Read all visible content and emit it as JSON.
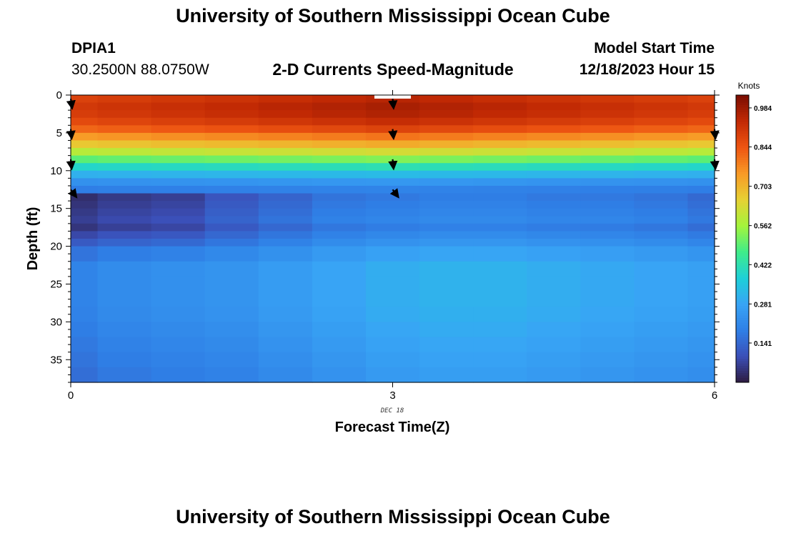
{
  "header": {
    "title": "University of Southern Mississippi Ocean Cube",
    "station_id": "DPIA1",
    "location": "30.2500N  88.0750W",
    "chart_title": "2-D Currents Speed-Magnitude",
    "model_start_label": "Model Start Time",
    "model_start_value": "12/18/2023 Hour 15"
  },
  "footer": {
    "title": "University of Southern Mississippi Ocean Cube"
  },
  "colors": {
    "colormap": [
      "#2d1b3f",
      "#3b4fb8",
      "#2f7fe6",
      "#38a4f5",
      "#1ed0d8",
      "#3fec8a",
      "#a4f43c",
      "#e6d134",
      "#f89a26",
      "#ee5512",
      "#c22a04",
      "#7a0d02"
    ],
    "arrow": "#000000",
    "surface_marker": "#ffffff"
  },
  "chart_data": {
    "type": "heatmap",
    "title": "2-D Currents Speed-Magnitude",
    "xlabel": "Forecast Time(Z)",
    "ylabel": "Depth (ft)",
    "x_date_label": "DEC 18",
    "xlim": [
      0,
      6
    ],
    "ylim": [
      38,
      0
    ],
    "x_ticks": [
      0,
      3,
      6
    ],
    "y_ticks": [
      0,
      5,
      10,
      15,
      20,
      25,
      30,
      35
    ],
    "y_inverted": true,
    "colorbar": {
      "title": "Knots",
      "range": [
        0.0,
        1.03
      ],
      "tick_values": [
        0.984,
        0.844,
        0.703,
        0.562,
        0.422,
        0.281,
        0.141
      ],
      "tick_labels": [
        "0.984",
        "0.844",
        "0.703",
        "0.562",
        "0.422",
        "0.281",
        "0.141"
      ]
    },
    "time_points": [
      0,
      0.25,
      0.75,
      1.25,
      1.75,
      2.25,
      2.75,
      3.25,
      3.75,
      4.25,
      4.75,
      5.25,
      5.75,
      6
    ],
    "depth_points": [
      0,
      1,
      2,
      3,
      4,
      5,
      6,
      7,
      8,
      9,
      10,
      11,
      12,
      13,
      14,
      15,
      16,
      17,
      18,
      19,
      20,
      22,
      24,
      26,
      28,
      30,
      32,
      34,
      36,
      38
    ],
    "speed_surface_ramp": [
      0.95,
      0.97,
      0.96,
      0.93,
      0.88,
      0.8,
      0.72,
      0.63,
      0.53,
      0.42,
      0.33,
      0.25,
      0.2,
      0.18
    ],
    "speed_low_layer": [
      0.03,
      0.05,
      0.06,
      0.1,
      0.13,
      0.16,
      0.17,
      0.18,
      0.18,
      0.17,
      0.17,
      0.16,
      0.14,
      0.13
    ],
    "speed_deep": [
      0.2,
      0.22,
      0.23,
      0.24,
      0.26,
      0.28,
      0.3,
      0.31,
      0.31,
      0.3,
      0.29,
      0.28,
      0.27,
      0.27
    ],
    "arrows": [
      {
        "time": 0,
        "depth": 0.5,
        "u": 0.15,
        "v": -1
      },
      {
        "time": 0,
        "depth": 4.5,
        "u": 0.1,
        "v": -1
      },
      {
        "time": 0,
        "depth": 8.5,
        "u": 0.1,
        "v": -1
      },
      {
        "time": 0,
        "depth": 12.5,
        "u": 0.6,
        "v": -0.8
      },
      {
        "time": 3,
        "depth": 0.5,
        "u": 0.1,
        "v": -1
      },
      {
        "time": 3,
        "depth": 4.5,
        "u": 0.1,
        "v": -1
      },
      {
        "time": 3,
        "depth": 8.5,
        "u": 0.1,
        "v": -1
      },
      {
        "time": 3,
        "depth": 12.5,
        "u": 0.6,
        "v": -0.8
      },
      {
        "time": 6,
        "depth": 4.5,
        "u": 0.1,
        "v": -1
      },
      {
        "time": 6,
        "depth": 8.5,
        "u": 0.1,
        "v": -1
      }
    ]
  }
}
